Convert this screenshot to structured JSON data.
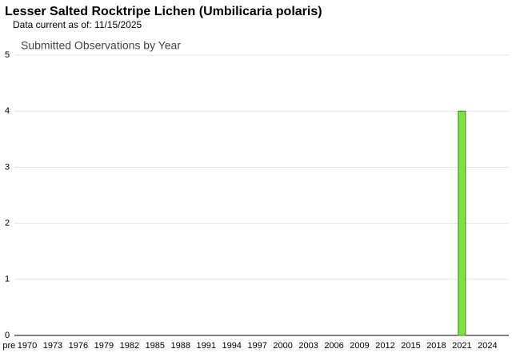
{
  "header": {
    "title": "Lesser Salted Rocktripe Lichen   (Umbilicaria polaris)",
    "subtitle": "Data current as of: 11/15/2025"
  },
  "chart_data": {
    "type": "bar",
    "title": "Submitted Observations by Year",
    "categories": [
      "pre",
      "1970",
      null,
      null,
      "1973",
      null,
      null,
      "1976",
      null,
      null,
      "1979",
      null,
      null,
      "1982",
      null,
      null,
      "1985",
      null,
      null,
      "1988",
      null,
      null,
      "1991",
      null,
      null,
      "1994",
      null,
      null,
      "1997",
      null,
      null,
      "2000",
      null,
      null,
      "2003",
      null,
      null,
      "2006",
      null,
      null,
      "2009",
      null,
      null,
      "2012",
      null,
      null,
      "2015",
      null,
      null,
      "2018",
      null,
      null,
      "2021",
      null,
      null,
      "2024",
      null,
      null
    ],
    "values": [
      0,
      0,
      0,
      0,
      0,
      0,
      0,
      0,
      0,
      0,
      0,
      0,
      0,
      0,
      0,
      0,
      0,
      0,
      0,
      0,
      0,
      0,
      0,
      0,
      0,
      0,
      0,
      0,
      0,
      0,
      0,
      0,
      0,
      0,
      0,
      0,
      0,
      0,
      0,
      0,
      0,
      0,
      0,
      0,
      0,
      0,
      0,
      0,
      0,
      0,
      0,
      0,
      4,
      0,
      0,
      0,
      0,
      0
    ],
    "color": "#80e040",
    "ylim": [
      0,
      5
    ],
    "yticks": [
      0,
      1,
      2,
      3,
      4,
      5
    ],
    "grid": true
  }
}
